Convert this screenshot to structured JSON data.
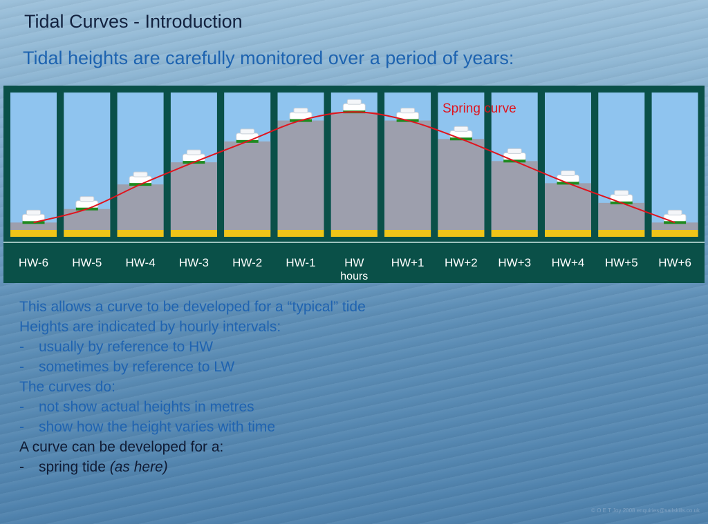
{
  "title": "Tidal Curves - Introduction",
  "subtitle": "Tidal heights are carefully monitored over a period of years:",
  "colors": {
    "frame": "#0a5048",
    "sky": "#8fc4ef",
    "water": "#9d9fad",
    "sand": "#f0c418",
    "curve": "#e0141d",
    "label_text": "#ffffff",
    "marker": "#1f8a1f"
  },
  "chart_data": {
    "type": "line",
    "categories": [
      "HW-6",
      "HW-5",
      "HW-4",
      "HW-3",
      "HW-2",
      "HW-1",
      "HW",
      "HW+1",
      "HW+2",
      "HW+3",
      "HW+4",
      "HW+5",
      "HW+6"
    ],
    "xlabel": "hours",
    "series": [
      {
        "name": "Spring curve",
        "values": [
          0.06,
          0.17,
          0.37,
          0.55,
          0.72,
          0.89,
          0.96,
          0.89,
          0.74,
          0.56,
          0.38,
          0.22,
          0.06
        ]
      }
    ],
    "ylim": [
      0,
      1
    ]
  },
  "notes": [
    {
      "style": "blue",
      "dash": false,
      "text": "This allows a curve to be developed for a “typical” tide"
    },
    {
      "style": "blue",
      "dash": false,
      "text": "Heights are indicated by hourly intervals:"
    },
    {
      "style": "blue",
      "dash": true,
      "text": "usually by reference to HW"
    },
    {
      "style": "blue",
      "dash": true,
      "text": "sometimes by reference to LW"
    },
    {
      "style": "blue",
      "dash": false,
      "text": "The curves do:"
    },
    {
      "style": "blue",
      "dash": true,
      "text": "not show actual heights in metres"
    },
    {
      "style": "blue",
      "dash": true,
      "text": "show how the height varies with time"
    },
    {
      "style": "dark",
      "dash": false,
      "text": "A curve can be developed for a:"
    },
    {
      "style": "dark",
      "dash": true,
      "text": "spring tide ",
      "italic": "(as here)"
    }
  ],
  "dash_char": "-",
  "copyright": "© O E T Joy 2008 enquiries@sailskills.co.uk"
}
